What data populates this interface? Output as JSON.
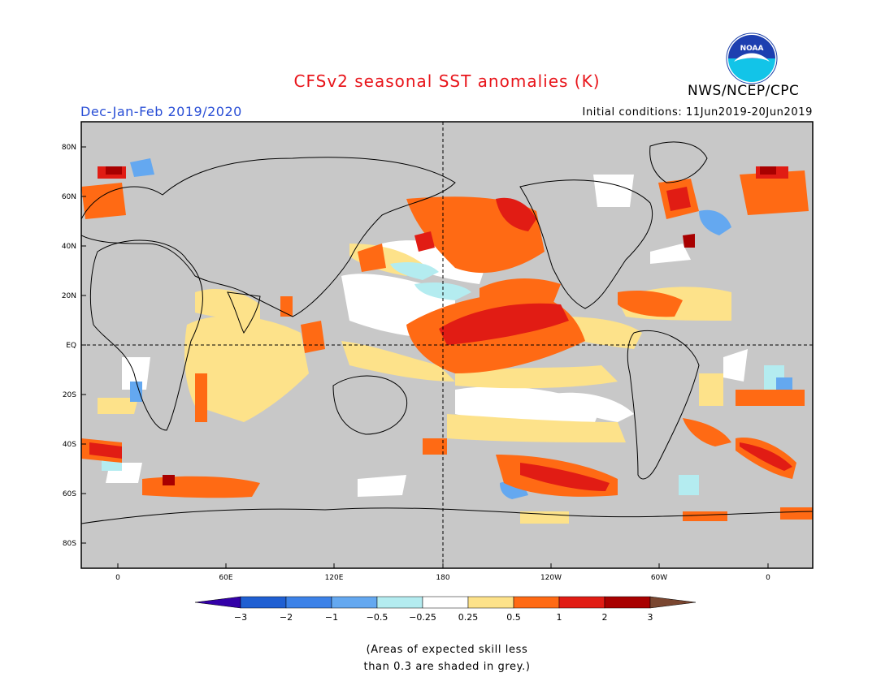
{
  "header": {
    "title": "CFSv2 seasonal SST anomalies (K)",
    "org": "NWS/NCEP/CPC",
    "period": "Dec-Jan-Feb 2019/2020",
    "initial_conditions": "Initial conditions: 11Jun2019-20Jun2019",
    "logo_text": "NOAA"
  },
  "map": {
    "lat_labels": [
      "80N",
      "60N",
      "40N",
      "20N",
      "EQ",
      "20S",
      "40S",
      "60S",
      "80S"
    ],
    "lon_labels": [
      "0",
      "60E",
      "120E",
      "180",
      "120W",
      "60W",
      "0"
    ],
    "colors": {
      "land": "#c8c8c8",
      "no_skill_grey": "#c8c8c8",
      "ocean_neutral": "#ffffff"
    }
  },
  "colorbar": {
    "labels": [
      "−3",
      "−2",
      "−1",
      "−0.5",
      "−0.25",
      "0.25",
      "0.5",
      "1",
      "2",
      "3"
    ],
    "colors": [
      "#3300a8",
      "#1f5fd2",
      "#3c82e8",
      "#64a8f0",
      "#b4ecf0",
      "#ffffff",
      "#fde28a",
      "#ff6a14",
      "#e11c14",
      "#a80000",
      "#7a4630"
    ]
  },
  "note": {
    "line1": "(Areas of expected skill less",
    "line2": "than 0.3 are shaded in grey.)"
  }
}
